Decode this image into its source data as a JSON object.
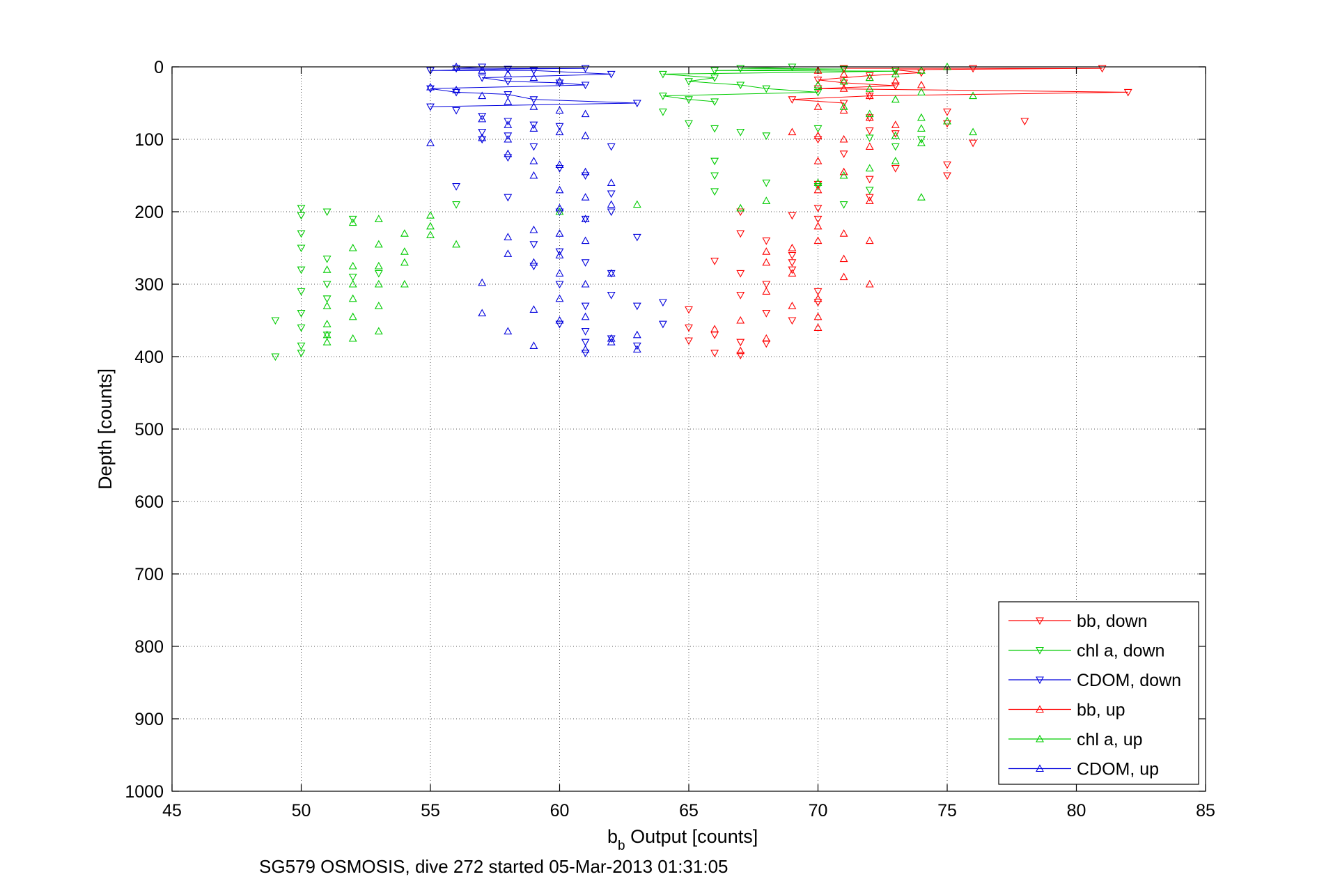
{
  "figure": {
    "caption": "SG579 OSMOSIS, dive 272 started 05-Mar-2013 01:31:05"
  },
  "chart_data": {
    "type": "scatter",
    "title": "",
    "xlabel_main": "b",
    "xlabel_sub": "b",
    "xlabel_rest": " Output [counts]",
    "ylabel": "Depth [counts]",
    "xlim": [
      45,
      85
    ],
    "ylim": [
      0,
      1000
    ],
    "y_reversed": true,
    "grid": true,
    "grid_style": "dotted",
    "xticks": [
      45,
      50,
      55,
      60,
      65,
      70,
      75,
      80,
      85
    ],
    "yticks": [
      0,
      100,
      200,
      300,
      400,
      500,
      600,
      700,
      800,
      900,
      1000
    ],
    "legend_position": "lower-right",
    "series": [
      {
        "name": "bb, down",
        "color": "#ff0000",
        "marker": "triangle-down",
        "connected_near_surface": true,
        "points": [
          [
            71,
            2
          ],
          [
            73,
            4
          ],
          [
            76,
            2
          ],
          [
            81,
            2
          ],
          [
            74,
            8
          ],
          [
            72,
            12
          ],
          [
            70,
            18
          ],
          [
            71,
            22
          ],
          [
            73,
            26
          ],
          [
            70,
            30
          ],
          [
            82,
            35
          ],
          [
            72,
            40
          ],
          [
            69,
            45
          ],
          [
            71,
            50
          ],
          [
            75,
            62
          ],
          [
            72,
            70
          ],
          [
            78,
            75
          ],
          [
            75,
            78
          ],
          [
            72,
            88
          ],
          [
            73,
            92
          ],
          [
            70,
            100
          ],
          [
            71,
            120
          ],
          [
            76,
            105
          ],
          [
            73,
            140
          ],
          [
            75,
            135
          ],
          [
            72,
            155
          ],
          [
            75,
            150
          ],
          [
            70,
            162
          ],
          [
            72,
            180
          ],
          [
            70,
            195
          ],
          [
            67,
            200
          ],
          [
            69,
            205
          ],
          [
            66,
            268
          ],
          [
            67,
            230
          ],
          [
            68,
            240
          ],
          [
            69,
            260
          ],
          [
            67,
            285
          ],
          [
            68,
            300
          ],
          [
            70,
            210
          ],
          [
            69,
            270
          ],
          [
            69,
            280
          ],
          [
            67,
            315
          ],
          [
            68,
            340
          ],
          [
            69,
            350
          ],
          [
            70,
            325
          ],
          [
            70,
            310
          ],
          [
            65,
            335
          ],
          [
            65,
            360
          ],
          [
            66,
            370
          ],
          [
            67,
            380
          ],
          [
            66,
            395
          ],
          [
            67,
            398
          ],
          [
            65,
            378
          ],
          [
            68,
            382
          ]
        ]
      },
      {
        "name": "chl a, down",
        "color": "#00cc00",
        "marker": "triangle-down",
        "connected_near_surface": true,
        "points": [
          [
            64,
            10
          ],
          [
            66,
            5
          ],
          [
            67,
            2
          ],
          [
            69,
            0
          ],
          [
            71,
            3
          ],
          [
            73,
            6
          ],
          [
            66,
            15
          ],
          [
            65,
            20
          ],
          [
            67,
            25
          ],
          [
            68,
            30
          ],
          [
            70,
            35
          ],
          [
            64,
            40
          ],
          [
            65,
            45
          ],
          [
            66,
            48
          ],
          [
            64,
            62
          ],
          [
            66,
            85
          ],
          [
            65,
            78
          ],
          [
            67,
            90
          ],
          [
            68,
            95
          ],
          [
            70,
            85
          ],
          [
            72,
            98
          ],
          [
            74,
            100
          ],
          [
            73,
            110
          ],
          [
            66,
            130
          ],
          [
            66,
            150
          ],
          [
            66,
            172
          ],
          [
            68,
            160
          ],
          [
            70,
            165
          ],
          [
            71,
            190
          ],
          [
            72,
            170
          ],
          [
            56,
            190
          ],
          [
            50,
            195
          ],
          [
            50,
            205
          ],
          [
            51,
            200
          ],
          [
            52,
            210
          ],
          [
            50,
            230
          ],
          [
            50,
            250
          ],
          [
            51,
            265
          ],
          [
            50,
            280
          ],
          [
            51,
            300
          ],
          [
            52,
            290
          ],
          [
            50,
            310
          ],
          [
            51,
            320
          ],
          [
            50,
            340
          ],
          [
            49,
            350
          ],
          [
            50,
            360
          ],
          [
            51,
            370
          ],
          [
            50,
            385
          ],
          [
            50,
            395
          ],
          [
            49,
            400
          ],
          [
            53,
            285
          ]
        ]
      },
      {
        "name": "CDOM, down",
        "color": "#0000dd",
        "marker": "triangle-down",
        "connected_near_surface": true,
        "points": [
          [
            55,
            5
          ],
          [
            56,
            2
          ],
          [
            57,
            0
          ],
          [
            58,
            3
          ],
          [
            59,
            5
          ],
          [
            61,
            2
          ],
          [
            62,
            10
          ],
          [
            57,
            15
          ],
          [
            58,
            20
          ],
          [
            60,
            22
          ],
          [
            61,
            25
          ],
          [
            55,
            30
          ],
          [
            56,
            35
          ],
          [
            58,
            38
          ],
          [
            59,
            45
          ],
          [
            63,
            50
          ],
          [
            55,
            55
          ],
          [
            56,
            60
          ],
          [
            57,
            68
          ],
          [
            58,
            75
          ],
          [
            59,
            80
          ],
          [
            60,
            82
          ],
          [
            57,
            90
          ],
          [
            58,
            95
          ],
          [
            57,
            100
          ],
          [
            58,
            125
          ],
          [
            59,
            110
          ],
          [
            62,
            110
          ],
          [
            60,
            140
          ],
          [
            61,
            150
          ],
          [
            62,
            175
          ],
          [
            56,
            165
          ],
          [
            58,
            180
          ],
          [
            60,
            200
          ],
          [
            61,
            210
          ],
          [
            62,
            200
          ],
          [
            63,
            235
          ],
          [
            59,
            245
          ],
          [
            60,
            255
          ],
          [
            61,
            270
          ],
          [
            62,
            285
          ],
          [
            59,
            275
          ],
          [
            60,
            300
          ],
          [
            61,
            330
          ],
          [
            62,
            315
          ],
          [
            63,
            330
          ],
          [
            64,
            325
          ],
          [
            60,
            355
          ],
          [
            61,
            365
          ],
          [
            62,
            375
          ],
          [
            63,
            385
          ],
          [
            64,
            355
          ],
          [
            61,
            380
          ],
          [
            61,
            395
          ]
        ]
      },
      {
        "name": "bb, up",
        "color": "#ff0000",
        "marker": "triangle-up",
        "connected_near_surface": false,
        "points": [
          [
            70,
            5
          ],
          [
            71,
            10
          ],
          [
            72,
            15
          ],
          [
            73,
            20
          ],
          [
            74,
            25
          ],
          [
            71,
            30
          ],
          [
            72,
            40
          ],
          [
            70,
            55
          ],
          [
            71,
            60
          ],
          [
            72,
            70
          ],
          [
            73,
            80
          ],
          [
            69,
            90
          ],
          [
            70,
            95
          ],
          [
            71,
            100
          ],
          [
            72,
            110
          ],
          [
            70,
            130
          ],
          [
            71,
            145
          ],
          [
            70,
            170
          ],
          [
            72,
            185
          ],
          [
            70,
            220
          ],
          [
            71,
            230
          ],
          [
            72,
            240
          ],
          [
            69,
            250
          ],
          [
            70,
            240
          ],
          [
            68,
            255
          ],
          [
            71,
            265
          ],
          [
            68,
            270
          ],
          [
            69,
            285
          ],
          [
            71,
            290
          ],
          [
            68,
            310
          ],
          [
            70,
            320
          ],
          [
            72,
            300
          ],
          [
            69,
            330
          ],
          [
            70,
            345
          ],
          [
            70,
            360
          ],
          [
            67,
            350
          ],
          [
            68,
            375
          ],
          [
            67,
            392
          ],
          [
            66,
            362
          ]
        ]
      },
      {
        "name": "chl a, up",
        "color": "#00cc00",
        "marker": "triangle-up",
        "connected_near_surface": false,
        "points": [
          [
            75,
            0
          ],
          [
            74,
            5
          ],
          [
            73,
            10
          ],
          [
            72,
            15
          ],
          [
            71,
            20
          ],
          [
            70,
            25
          ],
          [
            72,
            30
          ],
          [
            74,
            35
          ],
          [
            76,
            40
          ],
          [
            73,
            45
          ],
          [
            71,
            55
          ],
          [
            72,
            65
          ],
          [
            74,
            70
          ],
          [
            76,
            90
          ],
          [
            75,
            75
          ],
          [
            74,
            85
          ],
          [
            73,
            95
          ],
          [
            74,
            105
          ],
          [
            73,
            130
          ],
          [
            74,
            180
          ],
          [
            72,
            140
          ],
          [
            71,
            150
          ],
          [
            70,
            160
          ],
          [
            68,
            185
          ],
          [
            67,
            195
          ],
          [
            63,
            190
          ],
          [
            60,
            200
          ],
          [
            55,
            205
          ],
          [
            55,
            220
          ],
          [
            55,
            232
          ],
          [
            56,
            245
          ],
          [
            54,
            230
          ],
          [
            54,
            255
          ],
          [
            54,
            270
          ],
          [
            54,
            300
          ],
          [
            53,
            210
          ],
          [
            53,
            245
          ],
          [
            53,
            275
          ],
          [
            53,
            300
          ],
          [
            53,
            330
          ],
          [
            53,
            365
          ],
          [
            52,
            215
          ],
          [
            52,
            250
          ],
          [
            52,
            275
          ],
          [
            52,
            300
          ],
          [
            52,
            320
          ],
          [
            52,
            345
          ],
          [
            52,
            375
          ],
          [
            51,
            280
          ],
          [
            51,
            330
          ],
          [
            51,
            355
          ],
          [
            51,
            370
          ],
          [
            51,
            380
          ]
        ]
      },
      {
        "name": "CDOM, up",
        "color": "#0000dd",
        "marker": "triangle-up",
        "connected_near_surface": false,
        "points": [
          [
            56,
            0
          ],
          [
            57,
            5
          ],
          [
            58,
            10
          ],
          [
            59,
            15
          ],
          [
            60,
            20
          ],
          [
            55,
            28
          ],
          [
            56,
            32
          ],
          [
            57,
            40
          ],
          [
            58,
            48
          ],
          [
            59,
            55
          ],
          [
            60,
            60
          ],
          [
            61,
            65
          ],
          [
            57,
            72
          ],
          [
            58,
            80
          ],
          [
            59,
            85
          ],
          [
            60,
            90
          ],
          [
            61,
            95
          ],
          [
            57,
            98
          ],
          [
            58,
            100
          ],
          [
            55,
            105
          ],
          [
            58,
            120
          ],
          [
            59,
            130
          ],
          [
            60,
            135
          ],
          [
            61,
            145
          ],
          [
            62,
            160
          ],
          [
            59,
            150
          ],
          [
            60,
            170
          ],
          [
            61,
            180
          ],
          [
            62,
            190
          ],
          [
            60,
            195
          ],
          [
            61,
            210
          ],
          [
            59,
            225
          ],
          [
            60,
            230
          ],
          [
            61,
            240
          ],
          [
            58,
            235
          ],
          [
            58,
            258
          ],
          [
            59,
            270
          ],
          [
            60,
            260
          ],
          [
            60,
            285
          ],
          [
            61,
            300
          ],
          [
            62,
            285
          ],
          [
            57,
            298
          ],
          [
            60,
            320
          ],
          [
            59,
            335
          ],
          [
            60,
            350
          ],
          [
            61,
            345
          ],
          [
            62,
            375
          ],
          [
            57,
            340
          ],
          [
            58,
            365
          ],
          [
            59,
            385
          ],
          [
            61,
            390
          ],
          [
            62,
            380
          ],
          [
            63,
            370
          ],
          [
            63,
            390
          ]
        ]
      }
    ]
  }
}
